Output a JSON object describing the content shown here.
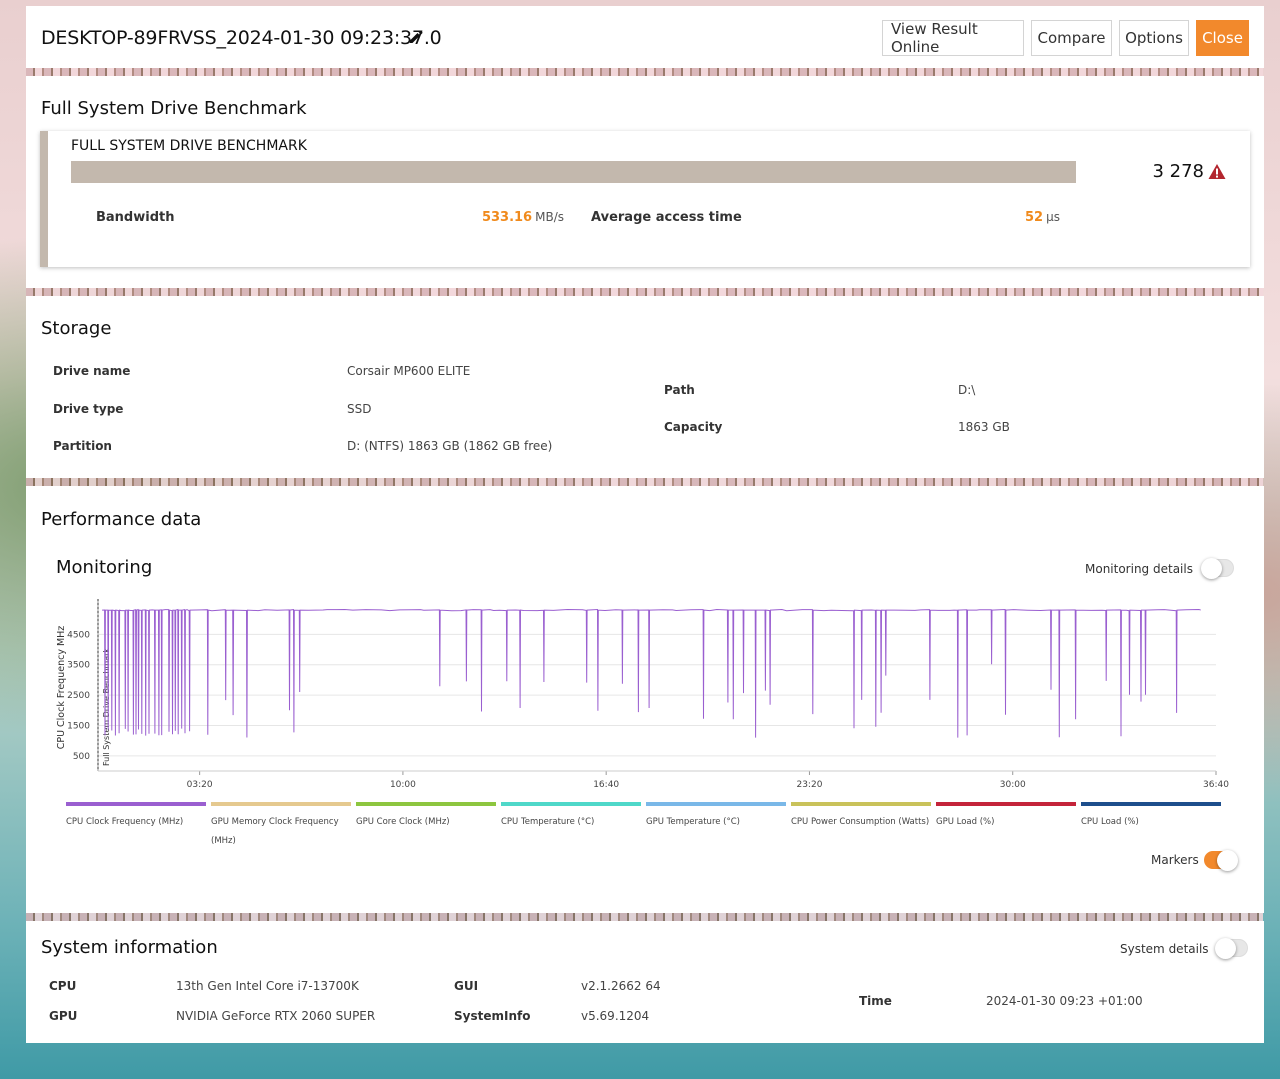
{
  "header": {
    "title": "DESKTOP-89FRVSS_2024-01-30 09:23:37.0",
    "buttons": {
      "view_online": "View Result Online",
      "compare": "Compare",
      "options": "Options",
      "close": "Close"
    }
  },
  "benchmark": {
    "section_title": "Full System Drive Benchmark",
    "name": "FULL SYSTEM DRIVE BENCHMARK",
    "score": "3 278",
    "bar_color": "#c3b8ad",
    "warning_icon": "warning-triangle-icon",
    "bandwidth_label": "Bandwidth",
    "bandwidth_value": "533.16",
    "bandwidth_unit": "MB/s",
    "access_label": "Average access time",
    "access_value": "52",
    "access_unit": "μs"
  },
  "storage": {
    "section_title": "Storage",
    "drive_name_label": "Drive name",
    "drive_name": "Corsair MP600 ELITE",
    "drive_type_label": "Drive type",
    "drive_type": "SSD",
    "partition_label": "Partition",
    "partition": "D: (NTFS) 1863 GB (1862 GB free)",
    "path_label": "Path",
    "path": "D:\\",
    "capacity_label": "Capacity",
    "capacity": "1863 GB"
  },
  "performance": {
    "section_title": "Performance data",
    "monitoring_title": "Monitoring",
    "monitoring_details_label": "Monitoring details",
    "monitoring_details_on": false,
    "markers_label": "Markers",
    "markers_on": true,
    "accent_color": "#f2892c"
  },
  "chart_data": {
    "type": "line",
    "ylabel": "CPU Clock Frequency MHz",
    "marker_label": "Full System Drive Benchmark",
    "y_ticks": [
      500,
      1500,
      2500,
      3500,
      4500
    ],
    "ylim": [
      0,
      5500
    ],
    "x_ticks": [
      "03:20",
      "10:00",
      "16:40",
      "23:20",
      "30:00",
      "36:40"
    ],
    "x_tick_seconds": [
      200,
      600,
      1000,
      1400,
      1800,
      2200
    ],
    "xlim_seconds": [
      0,
      2200
    ],
    "grid": true,
    "series": [
      {
        "name": "CPU Clock Frequency (MHz)",
        "color": "#9a5fd0"
      }
    ],
    "cpu_clock_baseline_mhz": 5300,
    "cpu_clock_dip_mhz": 1100,
    "legend": [
      {
        "label": "CPU Clock Frequency (MHz)",
        "color": "#9a5fd0"
      },
      {
        "label": "GPU Memory Clock Frequency (MHz)",
        "color": "#e5c98f"
      },
      {
        "label": "GPU Core Clock (MHz)",
        "color": "#8dc63f"
      },
      {
        "label": "CPU Temperature (°C)",
        "color": "#4fd8c9"
      },
      {
        "label": "GPU Temperature (°C)",
        "color": "#7ab8e8"
      },
      {
        "label": "CPU Power Consumption (Watts)",
        "color": "#c9c25a"
      },
      {
        "label": "GPU Load (%)",
        "color": "#c4243a"
      },
      {
        "label": "CPU Load (%)",
        "color": "#1d4e8c"
      }
    ]
  },
  "system": {
    "section_title": "System information",
    "system_details_label": "System details",
    "system_details_on": false,
    "cpu_label": "CPU",
    "cpu": "13th Gen Intel Core i7-13700K",
    "gpu_label": "GPU",
    "gpu": "NVIDIA GeForce RTX 2060 SUPER",
    "gui_label": "GUI",
    "gui": "v2.1.2662 64",
    "sysinfo_label": "SystemInfo",
    "sysinfo": "v5.69.1204",
    "time_label": "Time",
    "time": "2024-01-30 09:23 +01:00"
  }
}
